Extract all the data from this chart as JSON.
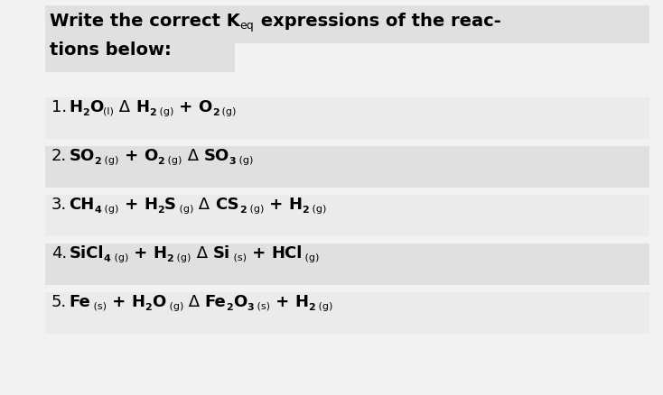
{
  "bg_color": "#f2f2f2",
  "title_highlight_color": "#e0e0e0",
  "row_colors": [
    "#ebebeb",
    "#e0e0e0",
    "#ebebeb",
    "#e0e0e0",
    "#ebebeb"
  ],
  "title_fs": 14,
  "title_keq_fs": 9,
  "large_fs": 13,
  "sub_fs": 8,
  "small_fs": 8,
  "reactions": [
    {
      "number": "1.",
      "segments": [
        {
          "text": "H",
          "type": "main"
        },
        {
          "text": "2",
          "type": "sub"
        },
        {
          "text": "O",
          "type": "main"
        },
        {
          "text": "(l)",
          "type": "state"
        },
        {
          "text": " Δ ",
          "type": "arrow"
        },
        {
          "text": "H",
          "type": "main"
        },
        {
          "text": "2",
          "type": "sub"
        },
        {
          "text": " (g)",
          "type": "state"
        },
        {
          "text": " + ",
          "type": "plus"
        },
        {
          "text": "O",
          "type": "main"
        },
        {
          "text": "2",
          "type": "sub"
        },
        {
          "text": " (g)",
          "type": "state"
        }
      ]
    },
    {
      "number": "2.",
      "segments": [
        {
          "text": "SO",
          "type": "main"
        },
        {
          "text": "2",
          "type": "sub"
        },
        {
          "text": " (g)",
          "type": "state"
        },
        {
          "text": " + ",
          "type": "plus"
        },
        {
          "text": "O",
          "type": "main"
        },
        {
          "text": "2",
          "type": "sub"
        },
        {
          "text": " (g)",
          "type": "state"
        },
        {
          "text": " Δ ",
          "type": "arrow"
        },
        {
          "text": "SO",
          "type": "main"
        },
        {
          "text": "3",
          "type": "sub"
        },
        {
          "text": " (g)",
          "type": "state"
        }
      ]
    },
    {
      "number": "3.",
      "segments": [
        {
          "text": "CH",
          "type": "main"
        },
        {
          "text": "4",
          "type": "sub"
        },
        {
          "text": " (g)",
          "type": "state"
        },
        {
          "text": " + ",
          "type": "plus"
        },
        {
          "text": "H",
          "type": "main"
        },
        {
          "text": "2",
          "type": "sub"
        },
        {
          "text": "S",
          "type": "main"
        },
        {
          "text": " (g)",
          "type": "state"
        },
        {
          "text": " Δ ",
          "type": "arrow"
        },
        {
          "text": "CS",
          "type": "main"
        },
        {
          "text": "2",
          "type": "sub"
        },
        {
          "text": " (g)",
          "type": "state"
        },
        {
          "text": " + ",
          "type": "plus"
        },
        {
          "text": "H",
          "type": "main"
        },
        {
          "text": "2",
          "type": "sub"
        },
        {
          "text": " (g)",
          "type": "state"
        }
      ]
    },
    {
      "number": "4.",
      "segments": [
        {
          "text": "SiCl",
          "type": "main"
        },
        {
          "text": "4",
          "type": "sub"
        },
        {
          "text": " (g)",
          "type": "state"
        },
        {
          "text": " + ",
          "type": "plus"
        },
        {
          "text": "H",
          "type": "main"
        },
        {
          "text": "2",
          "type": "sub"
        },
        {
          "text": " (g)",
          "type": "state"
        },
        {
          "text": " Δ ",
          "type": "arrow"
        },
        {
          "text": "Si",
          "type": "main"
        },
        {
          "text": " (s)",
          "type": "state"
        },
        {
          "text": " + ",
          "type": "plus"
        },
        {
          "text": "HCl",
          "type": "main"
        },
        {
          "text": " (g)",
          "type": "state"
        }
      ]
    },
    {
      "number": "5.",
      "segments": [
        {
          "text": "Fe",
          "type": "main"
        },
        {
          "text": " (s)",
          "type": "state"
        },
        {
          "text": " + ",
          "type": "plus"
        },
        {
          "text": "H",
          "type": "main"
        },
        {
          "text": "2",
          "type": "sub"
        },
        {
          "text": "O",
          "type": "main"
        },
        {
          "text": " (g)",
          "type": "state"
        },
        {
          "text": " Δ ",
          "type": "arrow"
        },
        {
          "text": "Fe",
          "type": "main"
        },
        {
          "text": "2",
          "type": "sub"
        },
        {
          "text": "O",
          "type": "main"
        },
        {
          "text": "3",
          "type": "sub"
        },
        {
          "text": " (s)",
          "type": "state"
        },
        {
          "text": " + ",
          "type": "plus"
        },
        {
          "text": "H",
          "type": "main"
        },
        {
          "text": "2",
          "type": "sub"
        },
        {
          "text": " (g)",
          "type": "state"
        }
      ]
    }
  ]
}
